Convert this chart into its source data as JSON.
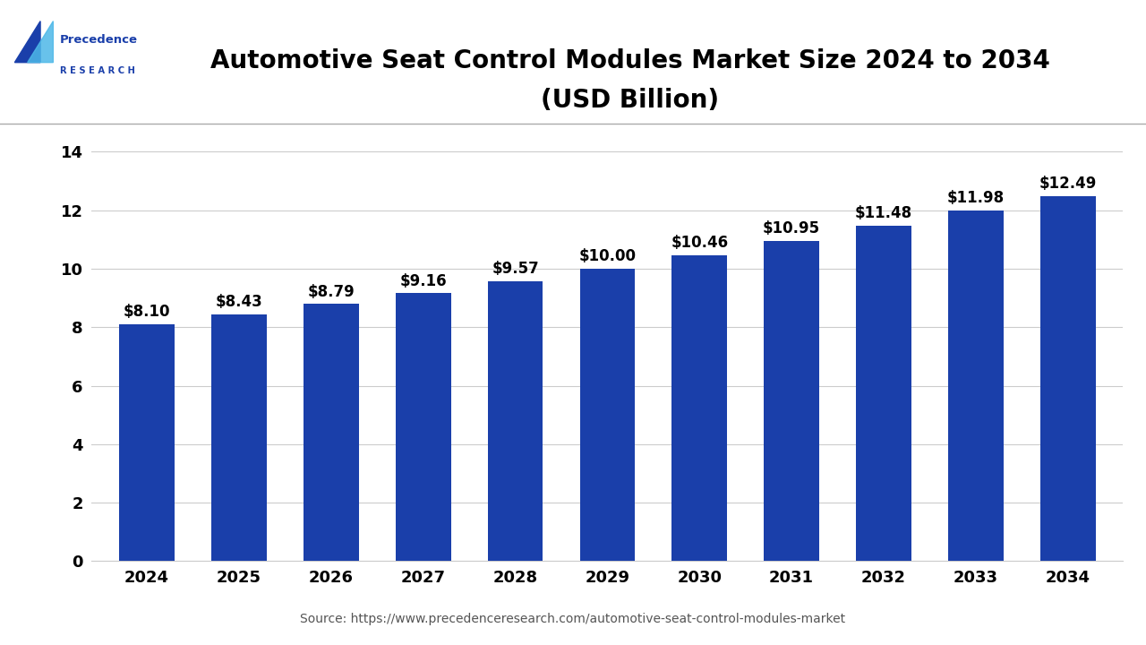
{
  "title_line1": "Automotive Seat Control Modules Market Size 2024 to 2034",
  "title_line2": "(USD Billion)",
  "years": [
    2024,
    2025,
    2026,
    2027,
    2028,
    2029,
    2030,
    2031,
    2032,
    2033,
    2034
  ],
  "values": [
    8.1,
    8.43,
    8.79,
    9.16,
    9.57,
    10.0,
    10.46,
    10.95,
    11.48,
    11.98,
    12.49
  ],
  "labels": [
    "$8.10",
    "$8.43",
    "$8.79",
    "$9.16",
    "$9.57",
    "$10.00",
    "$10.46",
    "$10.95",
    "$11.48",
    "$11.98",
    "$12.49"
  ],
  "bar_color": "#1a3faa",
  "background_color": "#ffffff",
  "plot_background": "#ffffff",
  "ylim": [
    0,
    15
  ],
  "yticks": [
    0,
    2,
    4,
    6,
    8,
    10,
    12,
    14
  ],
  "grid_color": "#cccccc",
  "source_text": "Source: https://www.precedenceresearch.com/automotive-seat-control-modules-market",
  "title_fontsize": 20,
  "label_fontsize": 12,
  "tick_fontsize": 13,
  "source_fontsize": 10,
  "bar_width": 0.6,
  "logo_precedence_color": "#1a3faa",
  "logo_light_blue": "#4db8e8",
  "logo_text_precedence": "Precedence",
  "logo_text_research": "R E S E A R C H"
}
